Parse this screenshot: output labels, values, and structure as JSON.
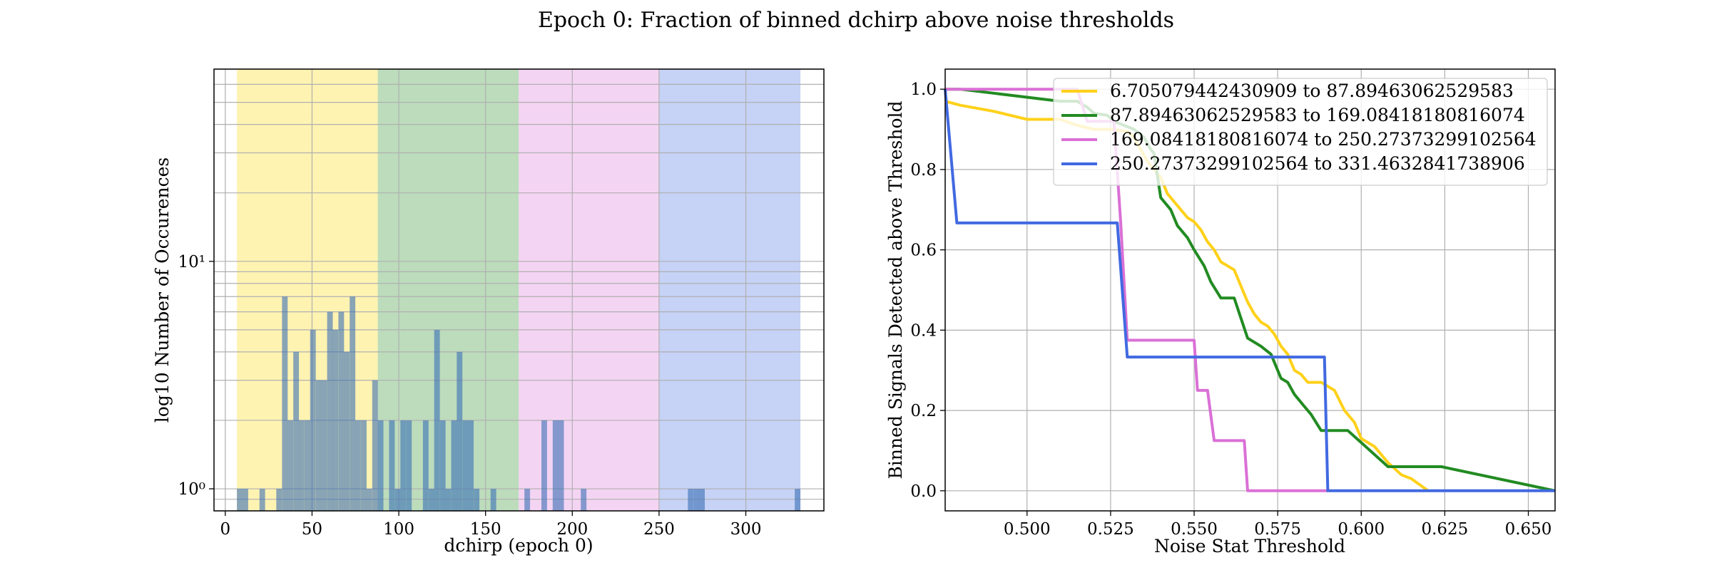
{
  "figure": {
    "title": "Epoch 0: Fraction of binned dchirp above noise thresholds"
  },
  "chart_data": [
    {
      "type": "bar",
      "subtype": "histogram",
      "xlabel": "dchirp (epoch 0)",
      "ylabel": "log10 Number of Occurences",
      "xlim": [
        -6.5,
        345
      ],
      "ylim": [
        0.8,
        70
      ],
      "yscale": "log",
      "xticks": [
        0,
        50,
        100,
        150,
        200,
        250,
        300
      ],
      "yticks": [
        {
          "value": 1,
          "label": "10⁰"
        },
        {
          "value": 10,
          "label": "10¹"
        }
      ],
      "grid": true,
      "bands": [
        {
          "from": 6.705079442430909,
          "to": 87.89463062529583,
          "color": "#ffd700",
          "opacity": 0.3
        },
        {
          "from": 87.89463062529583,
          "to": 169.08418180816074,
          "color": "#228b22",
          "opacity": 0.3
        },
        {
          "from": 169.08418180816074,
          "to": 250.27373299102564,
          "color": "#da70d6",
          "opacity": 0.3
        },
        {
          "from": 250.27373299102564,
          "to": 331.4632841738906,
          "color": "#4169e1",
          "opacity": 0.3
        }
      ],
      "bar_color": "#3a6fb5",
      "bin_width": 3.25,
      "bins": [
        {
          "x": 6.7,
          "count": 1
        },
        {
          "x": 9.95,
          "count": 1
        },
        {
          "x": 19.7,
          "count": 1
        },
        {
          "x": 29.4,
          "count": 1
        },
        {
          "x": 32.7,
          "count": 7
        },
        {
          "x": 35.9,
          "count": 2
        },
        {
          "x": 39.2,
          "count": 4
        },
        {
          "x": 42.4,
          "count": 2
        },
        {
          "x": 45.7,
          "count": 2
        },
        {
          "x": 48.9,
          "count": 5
        },
        {
          "x": 52.2,
          "count": 3
        },
        {
          "x": 55.4,
          "count": 3
        },
        {
          "x": 58.7,
          "count": 6
        },
        {
          "x": 61.9,
          "count": 5
        },
        {
          "x": 65.2,
          "count": 6
        },
        {
          "x": 68.4,
          "count": 4
        },
        {
          "x": 71.7,
          "count": 7
        },
        {
          "x": 74.9,
          "count": 2
        },
        {
          "x": 78.2,
          "count": 2
        },
        {
          "x": 81.4,
          "count": 1
        },
        {
          "x": 84.7,
          "count": 3
        },
        {
          "x": 87.9,
          "count": 2
        },
        {
          "x": 94.4,
          "count": 2
        },
        {
          "x": 97.7,
          "count": 1
        },
        {
          "x": 100.9,
          "count": 2
        },
        {
          "x": 104.2,
          "count": 2
        },
        {
          "x": 113.9,
          "count": 2
        },
        {
          "x": 117.2,
          "count": 1
        },
        {
          "x": 120.4,
          "count": 5
        },
        {
          "x": 123.7,
          "count": 2
        },
        {
          "x": 126.9,
          "count": 1
        },
        {
          "x": 130.2,
          "count": 2
        },
        {
          "x": 133.4,
          "count": 4
        },
        {
          "x": 136.7,
          "count": 2
        },
        {
          "x": 139.9,
          "count": 2
        },
        {
          "x": 143.2,
          "count": 1
        },
        {
          "x": 152.9,
          "count": 1
        },
        {
          "x": 172.4,
          "count": 1
        },
        {
          "x": 182.2,
          "count": 2
        },
        {
          "x": 188.7,
          "count": 2
        },
        {
          "x": 191.9,
          "count": 2
        },
        {
          "x": 204.9,
          "count": 1
        },
        {
          "x": 266.6,
          "count": 1
        },
        {
          "x": 269.9,
          "count": 1
        },
        {
          "x": 273.1,
          "count": 1
        },
        {
          "x": 328.2,
          "count": 1
        }
      ]
    },
    {
      "type": "line",
      "xlabel": "Noise Stat Threshold",
      "ylabel": "Binned Signals Detected above Threshold",
      "xlim": [
        0.4755,
        0.658
      ],
      "ylim": [
        -0.05,
        1.05
      ],
      "xticks": [
        0.5,
        0.525,
        0.55,
        0.575,
        0.6,
        0.625,
        0.65
      ],
      "xticklabels": [
        "0.500",
        "0.525",
        "0.550",
        "0.575",
        "0.600",
        "0.625",
        "0.650"
      ],
      "yticks": [
        0.0,
        0.2,
        0.4,
        0.6,
        0.8,
        1.0
      ],
      "yticklabels": [
        "0.0",
        "0.2",
        "0.4",
        "0.6",
        "0.8",
        "1.0"
      ],
      "grid": true,
      "legend": "top-right",
      "series": [
        {
          "name": "6.705079442430909 to 87.89463062529583",
          "color": "#ffd11a",
          "points": [
            [
              0.4755,
              0.97
            ],
            [
              0.48,
              0.96
            ],
            [
              0.49,
              0.945
            ],
            [
              0.5,
              0.925
            ],
            [
              0.51,
              0.925
            ],
            [
              0.515,
              0.91
            ],
            [
              0.52,
              0.9
            ],
            [
              0.525,
              0.9
            ],
            [
              0.53,
              0.895
            ],
            [
              0.532,
              0.88
            ],
            [
              0.534,
              0.85
            ],
            [
              0.536,
              0.82
            ],
            [
              0.538,
              0.8
            ],
            [
              0.54,
              0.78
            ],
            [
              0.542,
              0.74
            ],
            [
              0.544,
              0.72
            ],
            [
              0.546,
              0.7
            ],
            [
              0.548,
              0.68
            ],
            [
              0.55,
              0.67
            ],
            [
              0.552,
              0.65
            ],
            [
              0.554,
              0.62
            ],
            [
              0.556,
              0.6
            ],
            [
              0.558,
              0.57
            ],
            [
              0.56,
              0.56
            ],
            [
              0.562,
              0.55
            ],
            [
              0.564,
              0.51
            ],
            [
              0.566,
              0.47
            ],
            [
              0.568,
              0.44
            ],
            [
              0.57,
              0.42
            ],
            [
              0.572,
              0.41
            ],
            [
              0.574,
              0.39
            ],
            [
              0.576,
              0.36
            ],
            [
              0.578,
              0.34
            ],
            [
              0.58,
              0.3
            ],
            [
              0.582,
              0.29
            ],
            [
              0.584,
              0.27
            ],
            [
              0.588,
              0.27
            ],
            [
              0.592,
              0.25
            ],
            [
              0.595,
              0.2
            ],
            [
              0.598,
              0.17
            ],
            [
              0.6,
              0.13
            ],
            [
              0.604,
              0.11
            ],
            [
              0.608,
              0.07
            ],
            [
              0.612,
              0.04
            ],
            [
              0.615,
              0.03
            ],
            [
              0.62,
              0.0
            ]
          ]
        },
        {
          "name": "87.89463062529583 to 169.08418180816074",
          "color": "#228b22",
          "points": [
            [
              0.4755,
              1.0
            ],
            [
              0.48,
              1.0
            ],
            [
              0.49,
              0.99
            ],
            [
              0.5,
              0.98
            ],
            [
              0.51,
              0.97
            ],
            [
              0.515,
              0.97
            ],
            [
              0.518,
              0.955
            ],
            [
              0.52,
              0.94
            ],
            [
              0.524,
              0.935
            ],
            [
              0.526,
              0.92
            ],
            [
              0.532,
              0.9
            ],
            [
              0.535,
              0.88
            ],
            [
              0.537,
              0.85
            ],
            [
              0.538,
              0.84
            ],
            [
              0.54,
              0.73
            ],
            [
              0.543,
              0.7
            ],
            [
              0.545,
              0.66
            ],
            [
              0.548,
              0.63
            ],
            [
              0.55,
              0.6
            ],
            [
              0.553,
              0.56
            ],
            [
              0.555,
              0.52
            ],
            [
              0.558,
              0.48
            ],
            [
              0.562,
              0.48
            ],
            [
              0.564,
              0.43
            ],
            [
              0.566,
              0.38
            ],
            [
              0.57,
              0.36
            ],
            [
              0.573,
              0.34
            ],
            [
              0.576,
              0.28
            ],
            [
              0.578,
              0.27
            ],
            [
              0.58,
              0.24
            ],
            [
              0.583,
              0.21
            ],
            [
              0.585,
              0.19
            ],
            [
              0.588,
              0.15
            ],
            [
              0.596,
              0.15
            ],
            [
              0.6,
              0.12
            ],
            [
              0.608,
              0.06
            ],
            [
              0.624,
              0.06
            ],
            [
              0.658,
              0.0
            ]
          ]
        },
        {
          "name": "169.08418180816074 to 250.27373299102564",
          "color": "#da70d6",
          "points": [
            [
              0.4755,
              1.0
            ],
            [
              0.515,
              1.0
            ],
            [
              0.518,
              0.92
            ],
            [
              0.526,
              0.92
            ],
            [
              0.528,
              0.67
            ],
            [
              0.53,
              0.375
            ],
            [
              0.55,
              0.375
            ],
            [
              0.551,
              0.25
            ],
            [
              0.554,
              0.25
            ],
            [
              0.556,
              0.125
            ],
            [
              0.565,
              0.125
            ],
            [
              0.566,
              0.0
            ],
            [
              0.59,
              0.0
            ]
          ]
        },
        {
          "name": "250.27373299102564 to 331.4632841738906",
          "color": "#4169e1",
          "points": [
            [
              0.4755,
              1.0
            ],
            [
              0.479,
              0.667
            ],
            [
              0.527,
              0.667
            ],
            [
              0.53,
              0.333
            ],
            [
              0.589,
              0.333
            ],
            [
              0.59,
              0.0
            ],
            [
              0.658,
              0.0
            ]
          ]
        }
      ]
    }
  ]
}
